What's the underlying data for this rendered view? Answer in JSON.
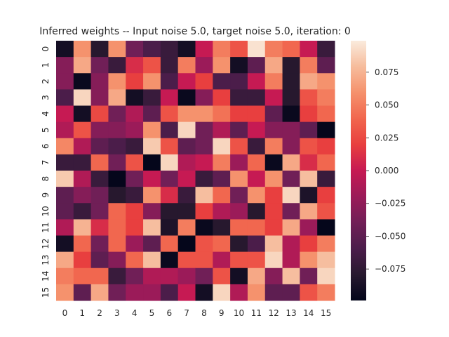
{
  "chart_data": {
    "type": "heatmap",
    "title": "Inferred weights -- Input noise 5.0, target noise 5.0, iteration: 0",
    "xlabel": "",
    "ylabel": "",
    "x_ticks": [
      "0",
      "1",
      "2",
      "3",
      "4",
      "5",
      "6",
      "7",
      "8",
      "9",
      "10",
      "11",
      "12",
      "13",
      "14",
      "15"
    ],
    "y_ticks": [
      "0",
      "1",
      "2",
      "3",
      "4",
      "5",
      "6",
      "7",
      "8",
      "9",
      "10",
      "11",
      "12",
      "13",
      "14",
      "15"
    ],
    "colorbar": {
      "ticks": [
        0.075,
        0.05,
        0.025,
        0.0,
        -0.025,
        -0.05,
        -0.075
      ],
      "tick_labels": [
        "0.075",
        "0.050",
        "0.025",
        "0.000",
        "−0.025",
        "−0.050",
        "−0.075"
      ],
      "vmin": -0.099,
      "vmax": 0.099,
      "colormap": "rocket"
    },
    "values": [
      [
        -0.09,
        0.06,
        -0.08,
        0.06,
        -0.04,
        -0.06,
        -0.07,
        -0.09,
        0.0,
        0.05,
        0.03,
        0.095,
        0.05,
        0.04,
        0.0,
        -0.07
      ],
      [
        -0.03,
        0.07,
        -0.04,
        -0.07,
        0.01,
        0.03,
        -0.07,
        0.05,
        -0.02,
        0.06,
        -0.09,
        -0.05,
        0.07,
        -0.08,
        0.05,
        -0.05
      ],
      [
        -0.03,
        -0.095,
        -0.03,
        0.06,
        0.02,
        0.06,
        -0.06,
        0.0,
        0.02,
        -0.06,
        -0.06,
        0.0,
        0.05,
        -0.08,
        0.07,
        0.06
      ],
      [
        -0.06,
        0.09,
        -0.03,
        0.07,
        -0.09,
        -0.07,
        0.0,
        -0.095,
        -0.03,
        0.02,
        -0.07,
        -0.07,
        0.0,
        -0.08,
        0.03,
        0.05
      ],
      [
        0.0,
        -0.09,
        0.025,
        -0.04,
        -0.01,
        -0.05,
        0.03,
        0.06,
        0.06,
        0.045,
        0.02,
        0.02,
        -0.05,
        -0.095,
        0.02,
        0.04
      ],
      [
        -0.01,
        0.03,
        -0.03,
        -0.03,
        -0.02,
        0.06,
        -0.06,
        0.09,
        -0.04,
        -0.01,
        -0.05,
        0.0,
        -0.03,
        -0.03,
        -0.05,
        -0.098
      ],
      [
        0.055,
        -0.01,
        -0.05,
        -0.06,
        -0.07,
        0.085,
        0.03,
        -0.05,
        -0.04,
        0.09,
        0.03,
        -0.07,
        0.05,
        -0.03,
        0.03,
        0.02
      ],
      [
        -0.07,
        -0.07,
        0.04,
        -0.04,
        0.03,
        -0.098,
        0.09,
        -0.01,
        0.0,
        0.05,
        -0.02,
        0.04,
        -0.095,
        0.07,
        0.01,
        0.04
      ],
      [
        0.085,
        -0.01,
        -0.07,
        -0.098,
        -0.04,
        0.0,
        -0.04,
        0.0,
        -0.07,
        -0.05,
        0.06,
        0.0,
        0.06,
        -0.04,
        0.08,
        -0.07
      ],
      [
        -0.05,
        -0.03,
        -0.04,
        -0.08,
        -0.07,
        0.06,
        0.01,
        -0.07,
        0.08,
        0.04,
        -0.04,
        0.06,
        0.02,
        0.09,
        -0.085,
        0.02
      ],
      [
        -0.05,
        -0.07,
        -0.04,
        0.04,
        0.02,
        -0.03,
        -0.08,
        -0.08,
        0.02,
        -0.01,
        -0.02,
        -0.08,
        0.02,
        -0.04,
        0.07,
        0.03
      ],
      [
        -0.01,
        0.075,
        0.01,
        0.04,
        0.02,
        0.08,
        -0.085,
        0.05,
        -0.095,
        -0.08,
        0.04,
        0.04,
        0.02,
        0.07,
        -0.02,
        -0.098
      ],
      [
        -0.09,
        0.04,
        -0.04,
        0.04,
        -0.02,
        -0.05,
        0.04,
        -0.098,
        0.03,
        0.04,
        -0.08,
        -0.06,
        0.08,
        -0.01,
        0.02,
        0.05
      ],
      [
        0.07,
        0.02,
        -0.05,
        -0.03,
        0.04,
        0.08,
        -0.095,
        0.03,
        0.03,
        -0.01,
        0.03,
        0.03,
        0.09,
        -0.01,
        0.06,
        0.08
      ],
      [
        0.05,
        0.04,
        0.04,
        -0.07,
        -0.04,
        -0.01,
        -0.01,
        -0.02,
        -0.04,
        0.03,
        -0.09,
        0.07,
        -0.03,
        0.08,
        -0.04,
        0.09
      ],
      [
        0.06,
        -0.05,
        0.07,
        -0.04,
        -0.02,
        -0.02,
        -0.06,
        0.0,
        -0.09,
        0.09,
        -0.01,
        0.06,
        -0.05,
        -0.05,
        0.03,
        0.05
      ]
    ]
  }
}
